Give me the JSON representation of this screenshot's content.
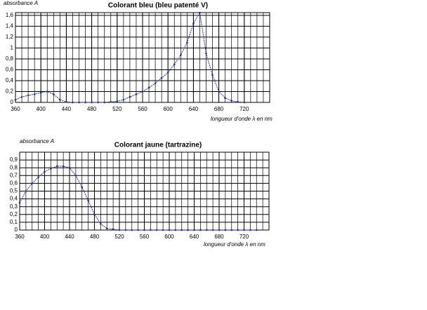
{
  "chart_data": [
    {
      "type": "line",
      "title": "Colorant bleu (bleu patenté V)",
      "y_label": "absorbance A",
      "x_label": "longueur d'onde λ en nm",
      "x": [
        360,
        370,
        380,
        390,
        400,
        410,
        420,
        430,
        440,
        450,
        460,
        470,
        480,
        490,
        500,
        510,
        520,
        530,
        540,
        550,
        560,
        570,
        580,
        590,
        600,
        610,
        620,
        630,
        640,
        650,
        660,
        670,
        680,
        690,
        700,
        710,
        720
      ],
      "series": [
        {
          "name": "bleu patenté V",
          "color": "#1f2f8f",
          "values": [
            0.05,
            0.1,
            0.13,
            0.15,
            0.18,
            0.2,
            0.15,
            0.05,
            0.01,
            0,
            0,
            0,
            0,
            0,
            0,
            0.01,
            0.02,
            0.05,
            0.1,
            0.15,
            0.2,
            0.27,
            0.35,
            0.45,
            0.55,
            0.7,
            0.87,
            1.1,
            1.45,
            1.65,
            0.9,
            0.5,
            0.2,
            0.08,
            0.03,
            0.01,
            0
          ]
        }
      ],
      "xlim": [
        360,
        760
      ],
      "xticks": [
        360,
        400,
        440,
        480,
        520,
        560,
        600,
        640,
        680,
        720
      ],
      "ylim": [
        0,
        1.65
      ],
      "yticks": [
        0,
        {
          "value": 0.2,
          "label": "0,2"
        },
        {
          "value": 0.4,
          "label": "0,4"
        },
        {
          "value": 0.6,
          "label": "0,6"
        },
        {
          "value": 0.8,
          "label": "0,8"
        },
        1,
        {
          "value": 1.2,
          "label": "1,2"
        },
        {
          "value": 1.4,
          "label": "1,4"
        },
        {
          "value": 1.6,
          "label": "1,6"
        }
      ],
      "grid": true
    },
    {
      "type": "line",
      "title": "Colorant jaune (tartrazine)",
      "y_label": "absorbance A",
      "x_label": "longueur d'onde λ en nm",
      "x": [
        360,
        370,
        380,
        390,
        400,
        410,
        420,
        430,
        440,
        450,
        460,
        470,
        480,
        490,
        500,
        510,
        520,
        530,
        540,
        550,
        560,
        570,
        580,
        590,
        600,
        610,
        620,
        630,
        640,
        650,
        660,
        670,
        680,
        690,
        700,
        710,
        720,
        730,
        740
      ],
      "series": [
        {
          "name": "tartrazine",
          "color": "#1f2f8f",
          "values": [
            0.35,
            0.5,
            0.6,
            0.68,
            0.75,
            0.79,
            0.82,
            0.82,
            0.8,
            0.7,
            0.55,
            0.38,
            0.2,
            0.08,
            0.02,
            0.01,
            0,
            0,
            0,
            0,
            0,
            0,
            0,
            0,
            0,
            0,
            0,
            0,
            0,
            0,
            0,
            0,
            0,
            0,
            0,
            0,
            0,
            0,
            0
          ]
        }
      ],
      "xlim": [
        360,
        760
      ],
      "xticks": [
        360,
        400,
        440,
        480,
        520,
        560,
        600,
        640,
        680,
        720
      ],
      "ylim": [
        0,
        1
      ],
      "yticks": [
        0,
        {
          "value": 0.1,
          "label": "0,1"
        },
        {
          "value": 0.2,
          "label": "0,2"
        },
        {
          "value": 0.3,
          "label": "0,3"
        },
        {
          "value": 0.4,
          "label": "0,4"
        },
        {
          "value": 0.5,
          "label": "0,5"
        },
        {
          "value": 0.6,
          "label": "0,6"
        },
        {
          "value": 0.7,
          "label": "0,7"
        },
        {
          "value": 0.8,
          "label": "0,8"
        },
        {
          "value": 0.9,
          "label": "0,9"
        }
      ],
      "grid": true
    }
  ]
}
